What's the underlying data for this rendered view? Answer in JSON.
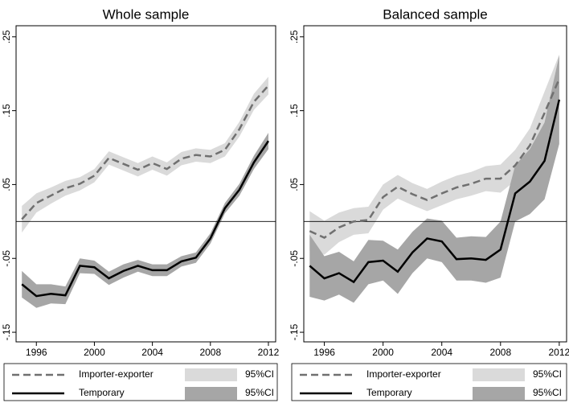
{
  "chart_data": [
    {
      "type": "line",
      "title": "Whole sample",
      "x": [
        1995,
        1996,
        1997,
        1998,
        1999,
        2000,
        2001,
        2002,
        2003,
        2004,
        2005,
        2006,
        2007,
        2008,
        2009,
        2010,
        2011,
        2012
      ],
      "xlim": [
        1994.6,
        2012.5
      ],
      "xticks": [
        1996,
        2000,
        2004,
        2008,
        2012
      ],
      "ylim": [
        -0.163,
        0.265
      ],
      "yticks": [
        {
          "value": -0.15,
          "label": "-.15"
        },
        {
          "value": -0.05,
          "label": "-.05"
        },
        {
          "value": 0.05,
          "label": ".05"
        },
        {
          "value": 0.15,
          "label": ".15"
        },
        {
          "value": 0.25,
          "label": ".25"
        }
      ],
      "hline": 0,
      "series": [
        {
          "name": "Importer-exporter",
          "color": "#707070",
          "dash": true,
          "values": [
            0.003,
            0.025,
            0.035,
            0.045,
            0.051,
            0.062,
            0.086,
            0.078,
            0.07,
            0.079,
            0.071,
            0.085,
            0.09,
            0.088,
            0.097,
            0.125,
            0.162,
            0.184
          ],
          "band": {
            "name": "95%CI",
            "color": "#dadada",
            "lower": [
              -0.015,
              0.012,
              0.024,
              0.035,
              0.042,
              0.053,
              0.077,
              0.069,
              0.061,
              0.07,
              0.062,
              0.076,
              0.081,
              0.079,
              0.088,
              0.115,
              0.151,
              0.172
            ],
            "upper": [
              0.021,
              0.038,
              0.046,
              0.055,
              0.06,
              0.071,
              0.095,
              0.087,
              0.079,
              0.088,
              0.08,
              0.094,
              0.099,
              0.097,
              0.106,
              0.135,
              0.173,
              0.196
            ]
          }
        },
        {
          "name": "Temporary",
          "color": "#000000",
          "dash": false,
          "values": [
            -0.085,
            -0.101,
            -0.098,
            -0.1,
            -0.06,
            -0.062,
            -0.077,
            -0.067,
            -0.06,
            -0.066,
            -0.066,
            -0.054,
            -0.049,
            -0.023,
            0.018,
            0.043,
            0.08,
            0.109
          ],
          "band": {
            "name": "95%CI",
            "color": "#a6a6a6",
            "lower": [
              -0.103,
              -0.117,
              -0.111,
              -0.112,
              -0.07,
              -0.071,
              -0.086,
              -0.076,
              -0.068,
              -0.074,
              -0.074,
              -0.061,
              -0.056,
              -0.03,
              0.011,
              0.035,
              0.071,
              0.098
            ],
            "upper": [
              -0.067,
              -0.085,
              -0.085,
              -0.088,
              -0.05,
              -0.053,
              -0.068,
              -0.058,
              -0.052,
              -0.058,
              -0.058,
              -0.047,
              -0.042,
              -0.016,
              0.025,
              0.051,
              0.089,
              0.12
            ]
          }
        }
      ]
    },
    {
      "type": "line",
      "title": "Balanced sample",
      "x": [
        1995,
        1996,
        1997,
        1998,
        1999,
        2000,
        2001,
        2002,
        2003,
        2004,
        2005,
        2006,
        2007,
        2008,
        2009,
        2010,
        2011,
        2012
      ],
      "xlim": [
        1994.6,
        2012.5
      ],
      "xticks": [
        1996,
        2000,
        2004,
        2008,
        2012
      ],
      "ylim": [
        -0.163,
        0.265
      ],
      "yticks": [
        {
          "value": -0.15,
          "label": "-.15"
        },
        {
          "value": -0.05,
          "label": "-.05"
        },
        {
          "value": 0.05,
          "label": ".05"
        },
        {
          "value": 0.15,
          "label": ".15"
        },
        {
          "value": 0.25,
          "label": ".25"
        }
      ],
      "hline": 0,
      "series": [
        {
          "name": "Importer-exporter",
          "color": "#707070",
          "dash": true,
          "values": [
            -0.013,
            -0.022,
            -0.008,
            0.0,
            0.002,
            0.033,
            0.047,
            0.037,
            0.029,
            0.038,
            0.046,
            0.051,
            0.058,
            0.058,
            0.076,
            0.103,
            0.147,
            0.193
          ],
          "band": {
            "name": "95%CI",
            "color": "#dadada",
            "lower": [
              -0.04,
              -0.045,
              -0.028,
              -0.018,
              -0.016,
              0.016,
              0.031,
              0.022,
              0.014,
              0.022,
              0.03,
              0.035,
              0.041,
              0.039,
              0.055,
              0.08,
              0.118,
              0.16
            ],
            "upper": [
              0.014,
              0.001,
              0.012,
              0.018,
              0.02,
              0.05,
              0.063,
              0.052,
              0.044,
              0.054,
              0.062,
              0.067,
              0.075,
              0.077,
              0.097,
              0.126,
              0.176,
              0.226
            ]
          }
        },
        {
          "name": "Temporary",
          "color": "#000000",
          "dash": false,
          "values": [
            -0.06,
            -0.077,
            -0.07,
            -0.082,
            -0.055,
            -0.053,
            -0.068,
            -0.042,
            -0.023,
            -0.027,
            -0.051,
            -0.05,
            -0.052,
            -0.038,
            0.038,
            0.054,
            0.082,
            0.165
          ],
          "band": {
            "name": "95%CI",
            "color": "#a6a6a6",
            "lower": [
              -0.102,
              -0.107,
              -0.099,
              -0.11,
              -0.085,
              -0.08,
              -0.098,
              -0.07,
              -0.05,
              -0.055,
              -0.08,
              -0.08,
              -0.083,
              -0.076,
              0.0,
              0.01,
              0.03,
              0.105
            ],
            "upper": [
              -0.018,
              -0.047,
              -0.041,
              -0.054,
              -0.025,
              -0.026,
              -0.038,
              -0.014,
              0.004,
              0.001,
              -0.022,
              -0.02,
              -0.021,
              0.0,
              0.076,
              0.098,
              0.134,
              0.225
            ]
          }
        }
      ]
    }
  ]
}
